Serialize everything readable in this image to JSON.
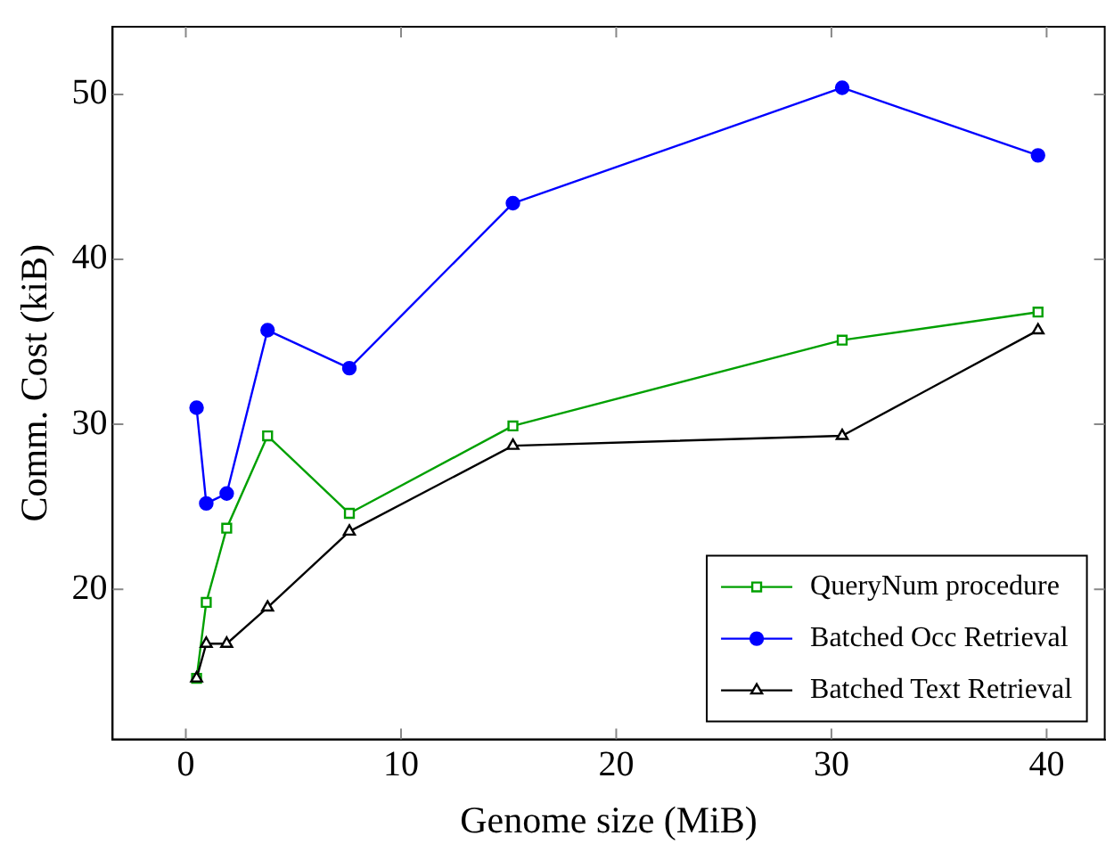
{
  "chart_data": {
    "type": "line",
    "xlabel": "Genome size (MiB)",
    "ylabel": "Comm. Cost (kiB)",
    "xlim": [
      -3.4,
      42.7
    ],
    "ylim": [
      10.9,
      54.1
    ],
    "xticks": [
      0,
      10,
      20,
      30,
      40
    ],
    "yticks": [
      20,
      30,
      40,
      50
    ],
    "grid": false,
    "legend": "bottom right",
    "line_style": "solid",
    "x": [
      0.5,
      0.95,
      1.9,
      3.8,
      7.6,
      15.2,
      30.5,
      39.6
    ],
    "series": [
      {
        "name": "QueryNum procedure",
        "color": "#00a000",
        "marker": "square",
        "values": [
          14.6,
          19.2,
          23.7,
          29.3,
          24.6,
          29.9,
          35.1,
          36.8
        ]
      },
      {
        "name": "Batched Occ Retrieval",
        "color": "#0000ff",
        "marker": "circle",
        "values": [
          31.0,
          25.2,
          25.8,
          35.7,
          33.4,
          43.4,
          50.4,
          46.3
        ]
      },
      {
        "name": "Batched Text Retrieval",
        "color": "#000000",
        "marker": "triangle",
        "values": [
          14.6,
          16.7,
          16.7,
          18.9,
          23.5,
          28.7,
          29.3,
          35.7
        ]
      }
    ]
  }
}
